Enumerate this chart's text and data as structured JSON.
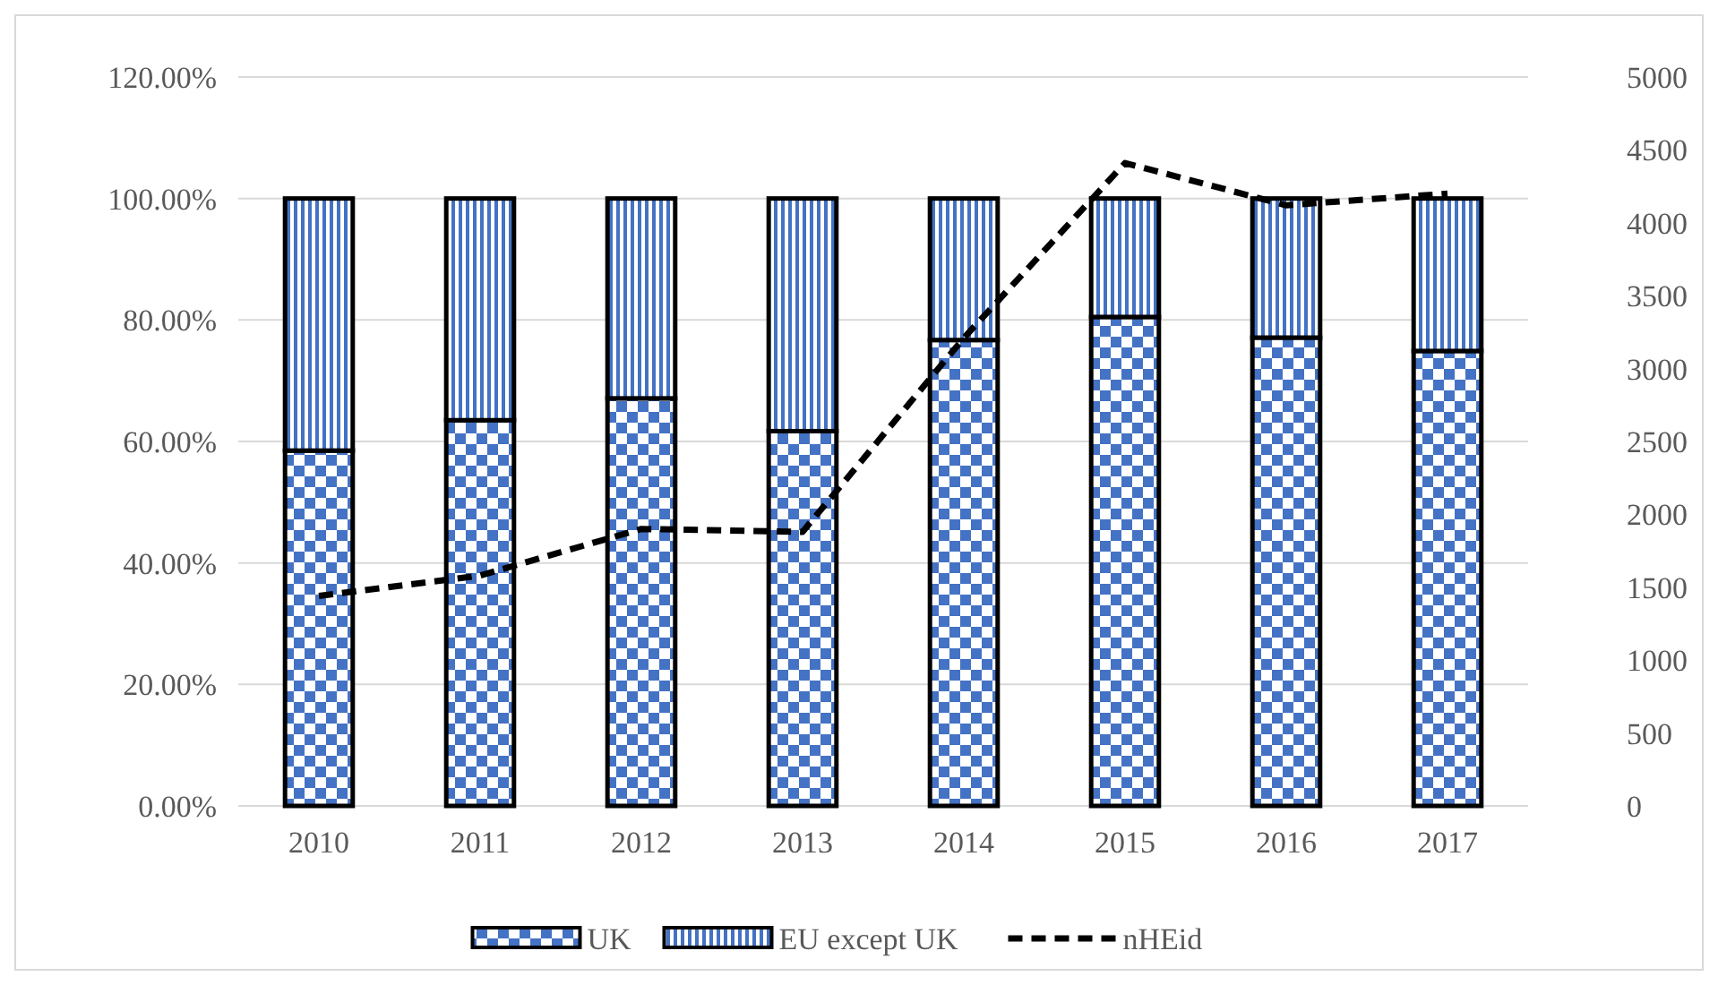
{
  "chart_data": {
    "type": "bar",
    "stacked": true,
    "categories": [
      "2010",
      "2011",
      "2012",
      "2013",
      "2014",
      "2015",
      "2016",
      "2017"
    ],
    "series": [
      {
        "name": "UK",
        "color": "#4472c4",
        "values": [
          58.5,
          63.5,
          67.1,
          61.7,
          76.7,
          80.5,
          77.1,
          74.9
        ]
      },
      {
        "name": "EU except UK",
        "color": "#4472c4",
        "values": [
          41.5,
          36.5,
          32.9,
          38.3,
          23.3,
          19.5,
          22.9,
          25.1
        ]
      },
      {
        "name": "nHEid",
        "type": "line",
        "axis": "y2",
        "color": "#000000",
        "line_style": "dashed",
        "marker": "none",
        "values": [
          1440,
          1580,
          1900,
          1880,
          3210,
          4410,
          4120,
          4200
        ]
      }
    ],
    "ylim": [
      0,
      120
    ],
    "yticks": [
      {
        "value": 0,
        "label": "0.00%"
      },
      {
        "value": 20,
        "label": "20.00%"
      },
      {
        "value": 40,
        "label": "40.00%"
      },
      {
        "value": 60,
        "label": "60.00%"
      },
      {
        "value": 80,
        "label": "80.00%"
      },
      {
        "value": 100,
        "label": "100.00%"
      },
      {
        "value": 120,
        "label": "120.00%"
      }
    ],
    "y2lim": [
      0,
      5000
    ],
    "y2ticks": [
      0,
      500,
      1000,
      1500,
      2000,
      2500,
      3000,
      3500,
      4000,
      4500,
      5000
    ],
    "grid": "y",
    "legend": "bottom"
  }
}
